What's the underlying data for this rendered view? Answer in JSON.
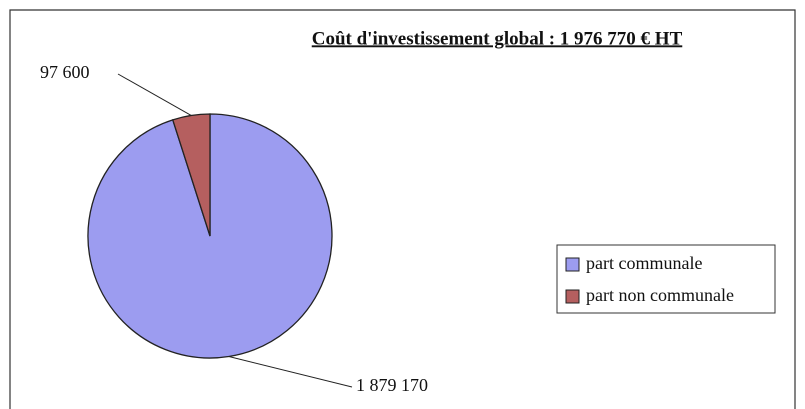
{
  "chart_data": {
    "type": "pie",
    "title": "Coût d'investissement global : 1 976 770 € HT",
    "categories": [
      "part communale",
      "part non communale"
    ],
    "values": [
      1879170,
      97600
    ],
    "value_labels": [
      "1 879 170",
      "97 600"
    ],
    "colors": [
      "#9c9cf0",
      "#b55f5f"
    ],
    "legend": "right"
  }
}
